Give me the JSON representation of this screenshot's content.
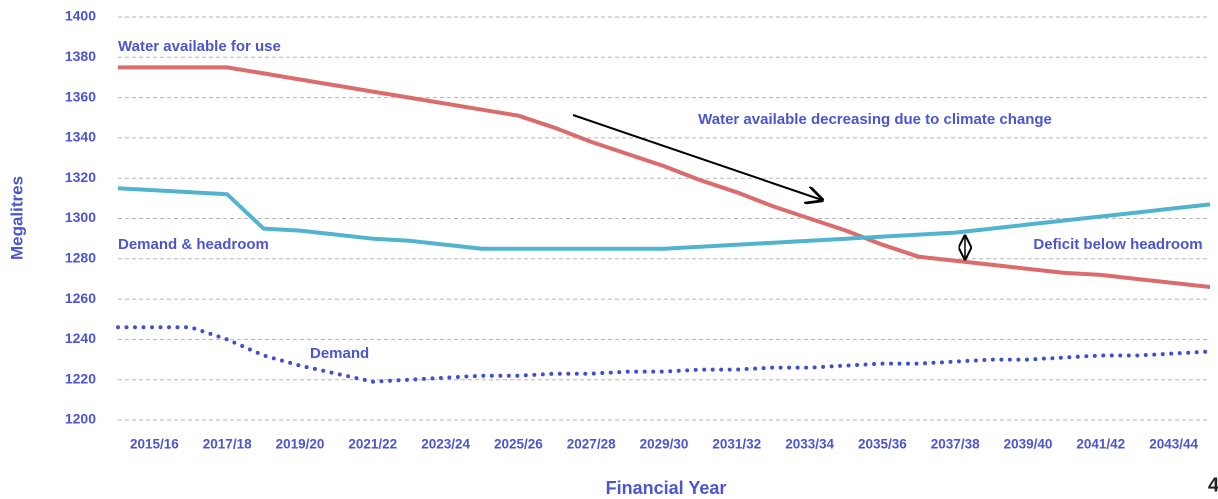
{
  "chart_data": {
    "type": "line",
    "x_label": "Financial Year",
    "y_label": "Megalitres",
    "categories": [
      null,
      "2015/16",
      null,
      "2017/18",
      null,
      "2019/20",
      null,
      "2021/22",
      null,
      "2023/24",
      null,
      "2025/26",
      null,
      "2027/28",
      null,
      "2029/30",
      null,
      "2031/32",
      null,
      "2033/34",
      null,
      "2035/36",
      null,
      "2037/38",
      null,
      "2039/40",
      null,
      "2041/42",
      null,
      "2043/44",
      null
    ],
    "series": [
      {
        "name": "Water available for use",
        "color": "#dc6b6b",
        "linestyle": "solid",
        "values": [
          1375,
          1375,
          1375,
          1375,
          1372,
          1369,
          1366,
          1363,
          1360,
          1357,
          1354,
          1351,
          1345,
          1338,
          1332,
          1326,
          1319,
          1313,
          1306,
          1300,
          1294,
          1287,
          1281,
          1279,
          1277,
          1275,
          1273,
          1272,
          1270,
          1268,
          1266
        ]
      },
      {
        "name": "Demand & headroom",
        "color": "#51b4cf",
        "linestyle": "solid",
        "values": [
          1315,
          1314,
          1313,
          1312,
          1295,
          1294,
          1292,
          1290,
          1289,
          1287,
          1285,
          1285,
          1285,
          1285,
          1285,
          1285,
          1286,
          1287,
          1288,
          1289,
          1290,
          1291,
          1292,
          1293,
          1295,
          1297,
          1299,
          1301,
          1303,
          1305,
          1307
        ]
      },
      {
        "name": "Demand",
        "color": "#3f4fd0",
        "linestyle": "dotted",
        "values": [
          1246,
          1246,
          1246,
          1240,
          1232,
          1227,
          1223,
          1219,
          1220,
          1221,
          1222,
          1222,
          1223,
          1223,
          1224,
          1224,
          1225,
          1225,
          1226,
          1226,
          1227,
          1228,
          1228,
          1229,
          1230,
          1230,
          1231,
          1232,
          1232,
          1233,
          1234
        ]
      }
    ],
    "annotations": [
      "Water available decreasing due to climate change",
      "Deficit below headroom"
    ],
    "ylim": [
      1200,
      1400
    ],
    "yticks": [
      1200,
      1220,
      1240,
      1260,
      1280,
      1300,
      1320,
      1340,
      1360,
      1380,
      1400
    ],
    "grid": true,
    "page_number": "4"
  }
}
